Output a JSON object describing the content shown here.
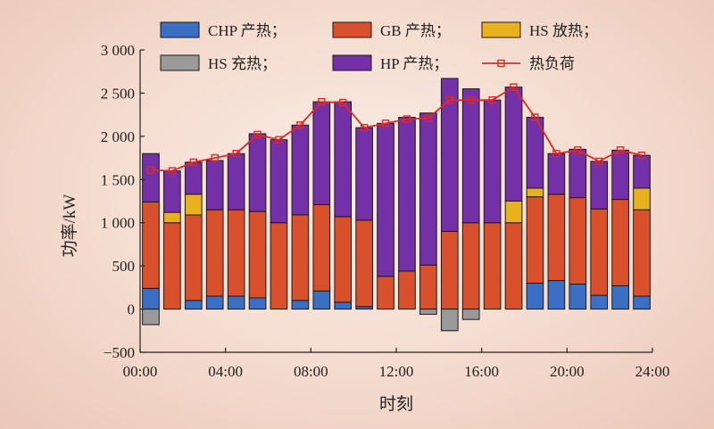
{
  "chart_data": {
    "type": "bar",
    "stacked": true,
    "xlabel": "时刻",
    "ylabel": "功率/kW",
    "ylim": [
      -500,
      3000
    ],
    "yticks": [
      "−500",
      "0",
      "500",
      "1 000",
      "1 500",
      "2 000",
      "2 500",
      "3 000"
    ],
    "ytick_values": [
      -500,
      0,
      500,
      1000,
      1500,
      2000,
      2500,
      3000
    ],
    "xlim": [
      0,
      24
    ],
    "xticks": [
      "00:00",
      "04:00",
      "08:00",
      "12:00",
      "16:00",
      "20:00",
      "24:00"
    ],
    "xtick_values": [
      0,
      4,
      8,
      12,
      16,
      20,
      24
    ],
    "x": [
      1,
      2,
      3,
      4,
      5,
      6,
      7,
      8,
      9,
      10,
      11,
      12,
      13,
      14,
      15,
      16,
      17,
      18,
      19,
      20,
      21,
      22,
      23,
      24
    ],
    "legend_position": "top",
    "series": [
      {
        "name": "CHP 产热；",
        "color": "#3a6fc4",
        "kind": "bar",
        "values": [
          240,
          0,
          100,
          150,
          150,
          130,
          0,
          100,
          210,
          80,
          30,
          0,
          0,
          0,
          0,
          0,
          0,
          0,
          300,
          330,
          290,
          160,
          270,
          150
        ]
      },
      {
        "name": "GB 产热；",
        "color": "#d9512c",
        "kind": "bar",
        "values": [
          1000,
          1000,
          990,
          1000,
          1000,
          1000,
          1000,
          990,
          1000,
          990,
          1000,
          380,
          440,
          510,
          900,
          1000,
          1000,
          1000,
          1000,
          1000,
          1000,
          1000,
          1000,
          1000
        ]
      },
      {
        "name": "HS 放热；",
        "color": "#e8b21e",
        "kind": "bar",
        "values": [
          0,
          120,
          240,
          0,
          0,
          0,
          0,
          0,
          0,
          0,
          0,
          0,
          0,
          0,
          0,
          0,
          0,
          250,
          100,
          0,
          0,
          0,
          0,
          250
        ]
      },
      {
        "name": "HS 充热；",
        "color": "#9a9a9a",
        "kind": "bar",
        "values": [
          -180,
          0,
          0,
          0,
          0,
          0,
          0,
          0,
          0,
          0,
          0,
          0,
          0,
          -60,
          -250,
          -120,
          0,
          0,
          0,
          0,
          0,
          0,
          0,
          0
        ]
      },
      {
        "name": "HP 产热；",
        "color": "#7430a6",
        "kind": "bar",
        "values": [
          560,
          480,
          370,
          570,
          650,
          900,
          960,
          1040,
          1190,
          1330,
          1070,
          1770,
          1780,
          1760,
          1770,
          1550,
          1420,
          1320,
          820,
          470,
          560,
          550,
          570,
          380
        ]
      },
      {
        "name": "热负荷",
        "color": "#e02828",
        "kind": "line",
        "values": [
          1610,
          1600,
          1700,
          1750,
          1800,
          2020,
          1960,
          2130,
          2400,
          2390,
          2100,
          2150,
          2200,
          2210,
          2420,
          2420,
          2420,
          2570,
          2220,
          1800,
          1840,
          1710,
          1840,
          1780
        ]
      }
    ]
  }
}
